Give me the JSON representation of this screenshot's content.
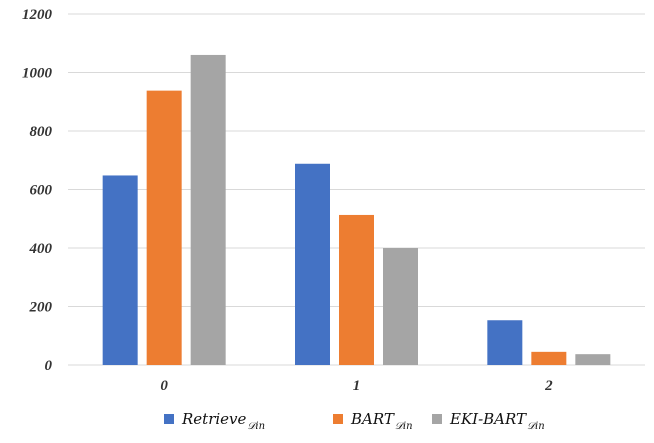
{
  "chart_data": {
    "type": "bar",
    "title": "",
    "xlabel": "",
    "ylabel": "",
    "categories": [
      "0",
      "1",
      "2"
    ],
    "ylim": [
      0,
      1200
    ],
    "yticks": [
      "0",
      "200",
      "400",
      "600",
      "800",
      "1000",
      "1200"
    ],
    "grid": true,
    "legend_position": "bottom",
    "series": [
      {
        "name": "Retrieve",
        "name_subscript": "𝒟in",
        "color": "#4472C4",
        "values": [
          648,
          688,
          153
        ]
      },
      {
        "name": "BART",
        "name_subscript": "𝒟in",
        "color": "#ED7D31",
        "values": [
          938,
          513,
          45
        ]
      },
      {
        "name": "EKI-BART",
        "name_subscript": "𝒟in",
        "color": "#A5A5A5",
        "values": [
          1060,
          400,
          37
        ]
      }
    ]
  }
}
